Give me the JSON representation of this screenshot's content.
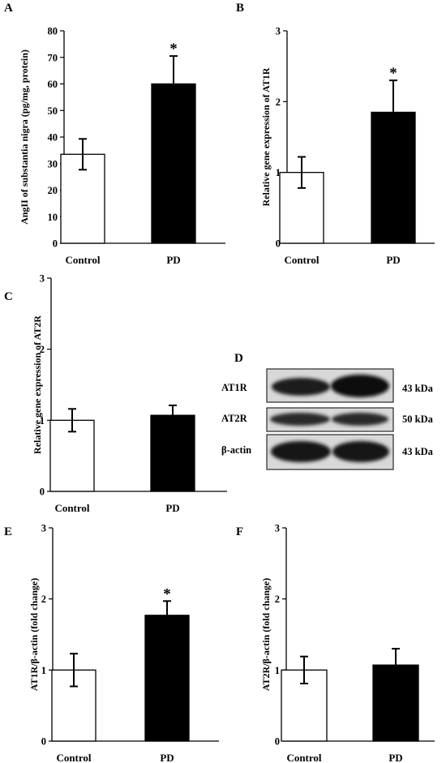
{
  "chart_data": [
    {
      "panel": "A",
      "type": "bar",
      "categories": [
        "Control",
        "PD"
      ],
      "values": [
        33.5,
        60
      ],
      "error": [
        5.8,
        10.5
      ],
      "significance": [
        "",
        "*"
      ],
      "ylabel": "AngII of substantia nigra (pg/mg, protein)",
      "ylim": [
        0,
        80
      ],
      "yticks": [
        "0",
        "10",
        "20",
        "30",
        "40",
        "50",
        "60",
        "70",
        "80"
      ],
      "bar_colors": [
        "#ffffff",
        "#000000"
      ],
      "grid": false
    },
    {
      "panel": "B",
      "type": "bar",
      "categories": [
        "Control",
        "PD"
      ],
      "values": [
        1.0,
        1.85
      ],
      "error": [
        0.22,
        0.45
      ],
      "significance": [
        "",
        "*"
      ],
      "ylabel": "Relative gene expression of AT1R",
      "ylim": [
        0,
        3
      ],
      "yticks": [
        "0",
        "1",
        "2",
        "3"
      ],
      "bar_colors": [
        "#ffffff",
        "#000000"
      ],
      "grid": false
    },
    {
      "panel": "C",
      "type": "bar",
      "categories": [
        "Control",
        "PD"
      ],
      "values": [
        1.0,
        1.07
      ],
      "error": [
        0.16,
        0.14
      ],
      "significance": [
        "",
        ""
      ],
      "ylabel": "Relative gene expression of AT2R",
      "ylim": [
        0,
        3
      ],
      "yticks": [
        "0",
        "1",
        "2",
        "3"
      ],
      "bar_colors": [
        "#ffffff",
        "#000000"
      ],
      "grid": false
    },
    {
      "panel": "E",
      "type": "bar",
      "categories": [
        "Control",
        "PD"
      ],
      "values": [
        1.0,
        1.77
      ],
      "error": [
        0.23,
        0.2
      ],
      "significance": [
        "",
        "*"
      ],
      "ylabel": "AT1R/β-actin (fold change)",
      "ylim": [
        0,
        3
      ],
      "yticks": [
        "0",
        "1",
        "2",
        "3"
      ],
      "bar_colors": [
        "#ffffff",
        "#000000"
      ],
      "grid": false
    },
    {
      "panel": "F",
      "type": "bar",
      "categories": [
        "Control",
        "PD"
      ],
      "values": [
        1.0,
        1.07
      ],
      "error": [
        0.19,
        0.23
      ],
      "significance": [
        "",
        ""
      ],
      "ylabel": "AT2R/β-actin (fold change)",
      "ylim": [
        0,
        3
      ],
      "yticks": [
        "0",
        "1",
        "2",
        "3"
      ],
      "bar_colors": [
        "#ffffff",
        "#000000"
      ],
      "grid": false
    }
  ],
  "blot": {
    "panel": "D",
    "rows": [
      {
        "label": "AT1R",
        "size": "43 kDa"
      },
      {
        "label": "AT2R",
        "size": "50 kDa"
      },
      {
        "label": "β-actin",
        "size": "43 kDa"
      }
    ]
  }
}
